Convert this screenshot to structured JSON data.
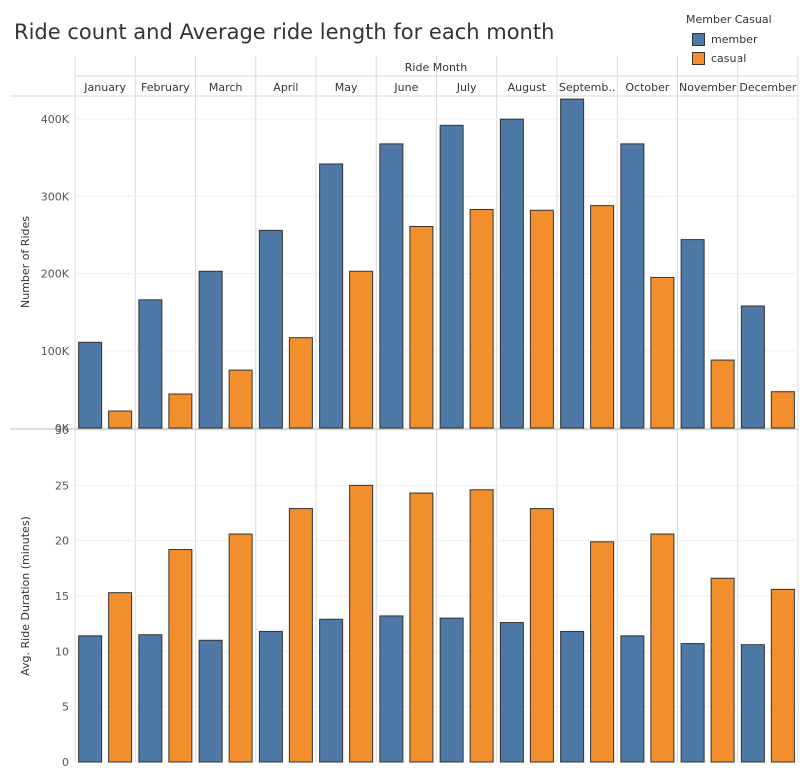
{
  "chart_data": {
    "type": "bar",
    "title": "Ride count and Average ride length for each month",
    "column_header": "Ride Month",
    "categories": [
      "January",
      "February",
      "March",
      "April",
      "May",
      "June",
      "July",
      "August",
      "Septemb..",
      "October",
      "November",
      "December"
    ],
    "legend": {
      "title": "Member Casual",
      "position": "top-right",
      "items": [
        {
          "name": "member",
          "color": "#4e79a7"
        },
        {
          "name": "casual",
          "color": "#f28e2b"
        }
      ]
    },
    "panels": [
      {
        "ylabel": "Number of Rides",
        "ylim": [
          0,
          430000
        ],
        "ticks": [
          {
            "value": 0,
            "label": "0K"
          },
          {
            "value": 100000,
            "label": "100K"
          },
          {
            "value": 200000,
            "label": "200K"
          },
          {
            "value": 300000,
            "label": "300K"
          },
          {
            "value": 400000,
            "label": "400K"
          }
        ],
        "series": [
          {
            "name": "member",
            "values": [
              111000,
              166000,
              203000,
              256000,
              342000,
              368000,
              392000,
              400000,
              426000,
              368000,
              244000,
              158000
            ]
          },
          {
            "name": "casual",
            "values": [
              22000,
              44000,
              75000,
              117000,
              203000,
              261000,
              283000,
              282000,
              288000,
              195000,
              88000,
              47000
            ]
          }
        ]
      },
      {
        "ylabel": "Avg. Ride Duration (minutes)",
        "ylim": [
          0,
          30
        ],
        "ticks": [
          {
            "value": 0,
            "label": "0"
          },
          {
            "value": 5,
            "label": "5"
          },
          {
            "value": 10,
            "label": "10"
          },
          {
            "value": 15,
            "label": "15"
          },
          {
            "value": 20,
            "label": "20"
          },
          {
            "value": 25,
            "label": "25"
          },
          {
            "value": 30,
            "label": "30"
          }
        ],
        "series": [
          {
            "name": "member",
            "values": [
              11.4,
              11.5,
              11.0,
              11.8,
              12.9,
              13.2,
              13.0,
              12.6,
              11.8,
              11.4,
              10.7,
              10.6
            ]
          },
          {
            "name": "casual",
            "values": [
              15.3,
              19.2,
              20.6,
              22.9,
              25.0,
              24.3,
              24.6,
              22.9,
              19.9,
              20.6,
              16.6,
              15.6
            ]
          }
        ]
      }
    ]
  }
}
